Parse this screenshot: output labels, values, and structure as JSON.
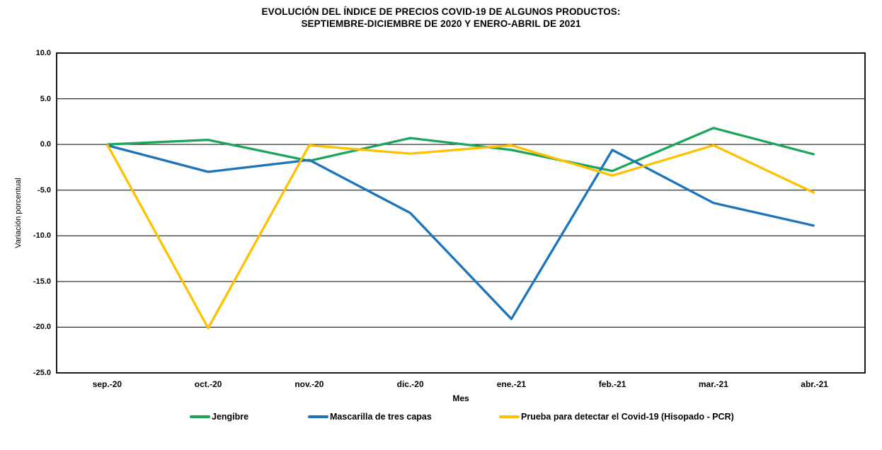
{
  "title": {
    "line1": "EVOLUCIÓN DEL ÍNDICE DE PRECIOS COVID-19 DE ALGUNOS PRODUCTOS:",
    "line2": "SEPTIEMBRE-DICIEMBRE DE 2020 Y ENERO-ABRIL DE 2021"
  },
  "chart_data": {
    "type": "line",
    "title": "EVOLUCIÓN DEL ÍNDICE DE PRECIOS COVID-19 DE ALGUNOS PRODUCTOS: SEPTIEMBRE-DICIEMBRE DE 2020 Y ENERO-ABRIL DE 2021",
    "xlabel": "Mes",
    "ylabel": "Variación porcentual",
    "ylim": [
      -25,
      10
    ],
    "y_tick_step": 5,
    "y_tick_labels": [
      "10.0",
      "5.0",
      "0.0",
      "-5.0",
      "-10.0",
      "-15.0",
      "-20.0",
      "-25.0"
    ],
    "grid": "horizontal",
    "legend_position": "bottom",
    "categories": [
      "sep.-20",
      "oct.-20",
      "nov.-20",
      "dic.-20",
      "ene.-21",
      "feb.-21",
      "mar.-21",
      "abr.-21"
    ],
    "series": [
      {
        "name": "Jengibre",
        "color": "#1CA65A",
        "values": [
          0.0,
          0.5,
          -1.8,
          0.7,
          -0.6,
          -2.9,
          1.8,
          -1.1
        ]
      },
      {
        "name": "Mascarilla de tres capas",
        "color": "#1B74BC",
        "values": [
          -0.1,
          -3.0,
          -1.7,
          -7.5,
          -19.1,
          -0.6,
          -6.4,
          -8.9
        ]
      },
      {
        "name": "Prueba para detectar el Covid-19 (Hisopado - PCR)",
        "color": "#FFC000",
        "values": [
          0.0,
          -20.1,
          -0.1,
          -1.0,
          -0.1,
          -3.4,
          -0.1,
          -5.3
        ]
      }
    ],
    "colors": {
      "grid": "#000000",
      "axis": "#000000",
      "text": "#000000",
      "background": "#FFFFFF"
    }
  },
  "legend_x_positions": [
    268,
    435,
    705
  ]
}
